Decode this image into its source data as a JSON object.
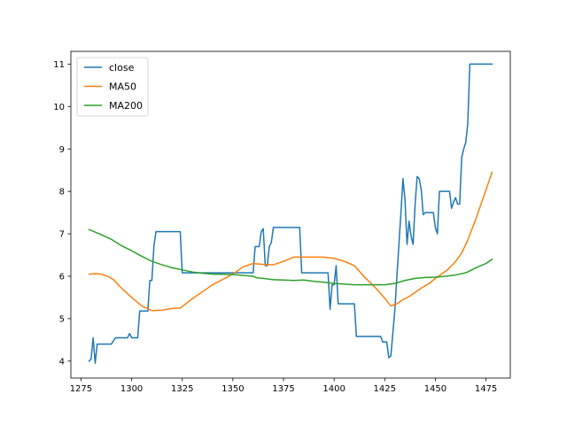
{
  "chart_data": {
    "type": "line",
    "title": "",
    "xlabel": "",
    "ylabel": "",
    "xlim": [
      1270,
      1487
    ],
    "ylim": [
      3.6,
      11.3
    ],
    "xticks": [
      1275,
      1300,
      1325,
      1350,
      1375,
      1400,
      1425,
      1450,
      1475
    ],
    "yticks": [
      4,
      5,
      6,
      7,
      8,
      9,
      10,
      11
    ],
    "grid": false,
    "legend": {
      "position": "top-left"
    },
    "series": [
      {
        "name": "close",
        "color": "#1f77b4",
        "points": [
          [
            1279,
            4.0
          ],
          [
            1280,
            4.05
          ],
          [
            1281,
            4.55
          ],
          [
            1282,
            3.95
          ],
          [
            1283,
            4.4
          ],
          [
            1285,
            4.4
          ],
          [
            1290,
            4.4
          ],
          [
            1292,
            4.55
          ],
          [
            1296,
            4.55
          ],
          [
            1298,
            4.55
          ],
          [
            1299,
            4.65
          ],
          [
            1300,
            4.55
          ],
          [
            1303,
            4.55
          ],
          [
            1304,
            5.18
          ],
          [
            1308,
            5.18
          ],
          [
            1309,
            5.9
          ],
          [
            1310,
            5.9
          ],
          [
            1311,
            6.7
          ],
          [
            1312,
            7.05
          ],
          [
            1324,
            7.05
          ],
          [
            1325,
            6.08
          ],
          [
            1360,
            6.08
          ],
          [
            1361,
            6.7
          ],
          [
            1363,
            6.7
          ],
          [
            1364,
            7.05
          ],
          [
            1365,
            7.12
          ],
          [
            1366,
            6.25
          ],
          [
            1367,
            6.25
          ],
          [
            1368,
            6.7
          ],
          [
            1369,
            6.8
          ],
          [
            1370,
            7.15
          ],
          [
            1383,
            7.15
          ],
          [
            1384,
            6.08
          ],
          [
            1397,
            6.08
          ],
          [
            1398,
            5.22
          ],
          [
            1399,
            5.8
          ],
          [
            1400,
            5.8
          ],
          [
            1401,
            6.25
          ],
          [
            1402,
            5.35
          ],
          [
            1410,
            5.35
          ],
          [
            1411,
            4.58
          ],
          [
            1423,
            4.58
          ],
          [
            1424,
            4.45
          ],
          [
            1426,
            4.45
          ],
          [
            1427,
            4.08
          ],
          [
            1428,
            4.12
          ],
          [
            1430,
            5.2
          ],
          [
            1431,
            6.0
          ],
          [
            1433,
            7.5
          ],
          [
            1434,
            8.3
          ],
          [
            1435,
            7.8
          ],
          [
            1436,
            6.75
          ],
          [
            1437,
            7.3
          ],
          [
            1438,
            6.95
          ],
          [
            1439,
            6.75
          ],
          [
            1440,
            7.7
          ],
          [
            1441,
            8.35
          ],
          [
            1442,
            8.3
          ],
          [
            1443,
            8.05
          ],
          [
            1444,
            7.45
          ],
          [
            1445,
            7.5
          ],
          [
            1449,
            7.5
          ],
          [
            1450,
            7.15
          ],
          [
            1451,
            7.0
          ],
          [
            1452,
            8.0
          ],
          [
            1457,
            8.0
          ],
          [
            1458,
            7.6
          ],
          [
            1459,
            7.75
          ],
          [
            1460,
            7.85
          ],
          [
            1461,
            7.7
          ],
          [
            1462,
            7.7
          ],
          [
            1463,
            8.8
          ],
          [
            1464,
            9.0
          ],
          [
            1465,
            9.15
          ],
          [
            1466,
            9.6
          ],
          [
            1467,
            11.0
          ],
          [
            1478,
            11.0
          ]
        ]
      },
      {
        "name": "MA50",
        "color": "#ff7f0e",
        "points": [
          [
            1279,
            6.05
          ],
          [
            1282,
            6.06
          ],
          [
            1285,
            6.05
          ],
          [
            1289,
            5.98
          ],
          [
            1291,
            5.92
          ],
          [
            1295,
            5.72
          ],
          [
            1300,
            5.5
          ],
          [
            1305,
            5.3
          ],
          [
            1310,
            5.19
          ],
          [
            1315,
            5.2
          ],
          [
            1320,
            5.24
          ],
          [
            1324,
            5.25
          ],
          [
            1330,
            5.47
          ],
          [
            1340,
            5.8
          ],
          [
            1350,
            6.05
          ],
          [
            1355,
            6.22
          ],
          [
            1360,
            6.3
          ],
          [
            1365,
            6.28
          ],
          [
            1370,
            6.27
          ],
          [
            1375,
            6.35
          ],
          [
            1380,
            6.45
          ],
          [
            1390,
            6.45
          ],
          [
            1395,
            6.45
          ],
          [
            1400,
            6.42
          ],
          [
            1405,
            6.35
          ],
          [
            1410,
            6.25
          ],
          [
            1415,
            5.98
          ],
          [
            1420,
            5.75
          ],
          [
            1425,
            5.48
          ],
          [
            1428,
            5.3
          ],
          [
            1431,
            5.35
          ],
          [
            1434,
            5.45
          ],
          [
            1437,
            5.52
          ],
          [
            1440,
            5.62
          ],
          [
            1443,
            5.72
          ],
          [
            1447,
            5.83
          ],
          [
            1450,
            5.95
          ],
          [
            1453,
            6.05
          ],
          [
            1456,
            6.15
          ],
          [
            1460,
            6.35
          ],
          [
            1463,
            6.55
          ],
          [
            1466,
            6.85
          ],
          [
            1470,
            7.35
          ],
          [
            1474,
            7.9
          ],
          [
            1478,
            8.45
          ]
        ]
      },
      {
        "name": "MA200",
        "color": "#2ca02c",
        "points": [
          [
            1279,
            7.1
          ],
          [
            1285,
            6.98
          ],
          [
            1290,
            6.87
          ],
          [
            1295,
            6.72
          ],
          [
            1300,
            6.6
          ],
          [
            1305,
            6.47
          ],
          [
            1310,
            6.35
          ],
          [
            1315,
            6.27
          ],
          [
            1320,
            6.2
          ],
          [
            1325,
            6.15
          ],
          [
            1330,
            6.1
          ],
          [
            1335,
            6.07
          ],
          [
            1340,
            6.05
          ],
          [
            1350,
            6.04
          ],
          [
            1360,
            6.0
          ],
          [
            1362,
            5.96
          ],
          [
            1365,
            5.95
          ],
          [
            1370,
            5.92
          ],
          [
            1375,
            5.91
          ],
          [
            1380,
            5.9
          ],
          [
            1385,
            5.91
          ],
          [
            1390,
            5.88
          ],
          [
            1395,
            5.86
          ],
          [
            1400,
            5.83
          ],
          [
            1410,
            5.8
          ],
          [
            1420,
            5.8
          ],
          [
            1425,
            5.8
          ],
          [
            1430,
            5.83
          ],
          [
            1435,
            5.9
          ],
          [
            1440,
            5.95
          ],
          [
            1445,
            5.97
          ],
          [
            1450,
            5.98
          ],
          [
            1455,
            6.0
          ],
          [
            1460,
            6.03
          ],
          [
            1465,
            6.08
          ],
          [
            1470,
            6.2
          ],
          [
            1475,
            6.3
          ],
          [
            1478,
            6.4
          ]
        ]
      }
    ]
  }
}
